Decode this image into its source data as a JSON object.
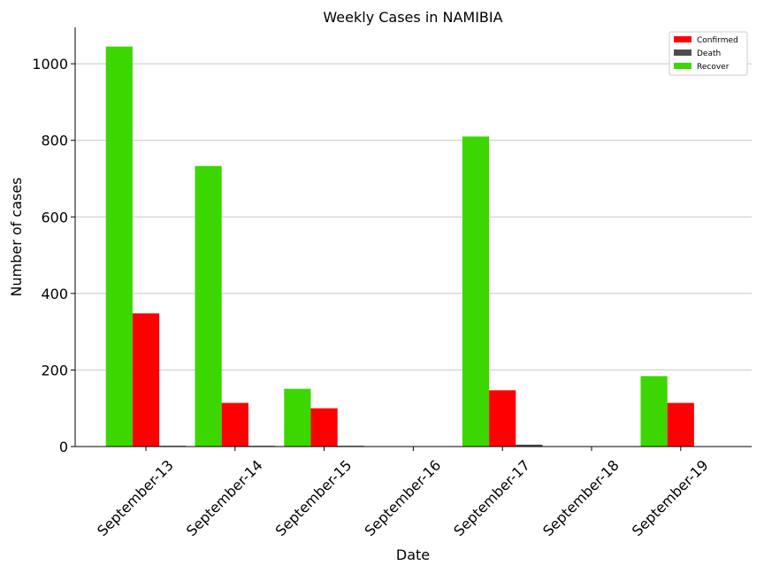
{
  "chart_data": {
    "type": "bar",
    "title": "Weekly Cases in NAMIBIA",
    "xlabel": "Date",
    "ylabel": "Number of cases",
    "categories": [
      "September-13",
      "September-14",
      "September-15",
      "September-16",
      "September-17",
      "September-18",
      "September-19"
    ],
    "series": [
      {
        "name": "Recover",
        "color": "#3cd700",
        "values": [
          1045,
          733,
          151,
          0,
          810,
          0,
          184
        ]
      },
      {
        "name": "Confirmed",
        "color": "#ff0000",
        "values": [
          348,
          114,
          100,
          0,
          147,
          0,
          114
        ]
      },
      {
        "name": "Death",
        "color": "#4d4d4d",
        "values": [
          2,
          2,
          2,
          0,
          5,
          0,
          0
        ]
      }
    ],
    "legend_order": [
      "Confirmed",
      "Death",
      "Recover"
    ],
    "yticks": [
      0,
      200,
      400,
      600,
      800,
      1000
    ],
    "ylim": [
      0,
      1095
    ],
    "grid": "y",
    "legend_position": "top-right"
  }
}
